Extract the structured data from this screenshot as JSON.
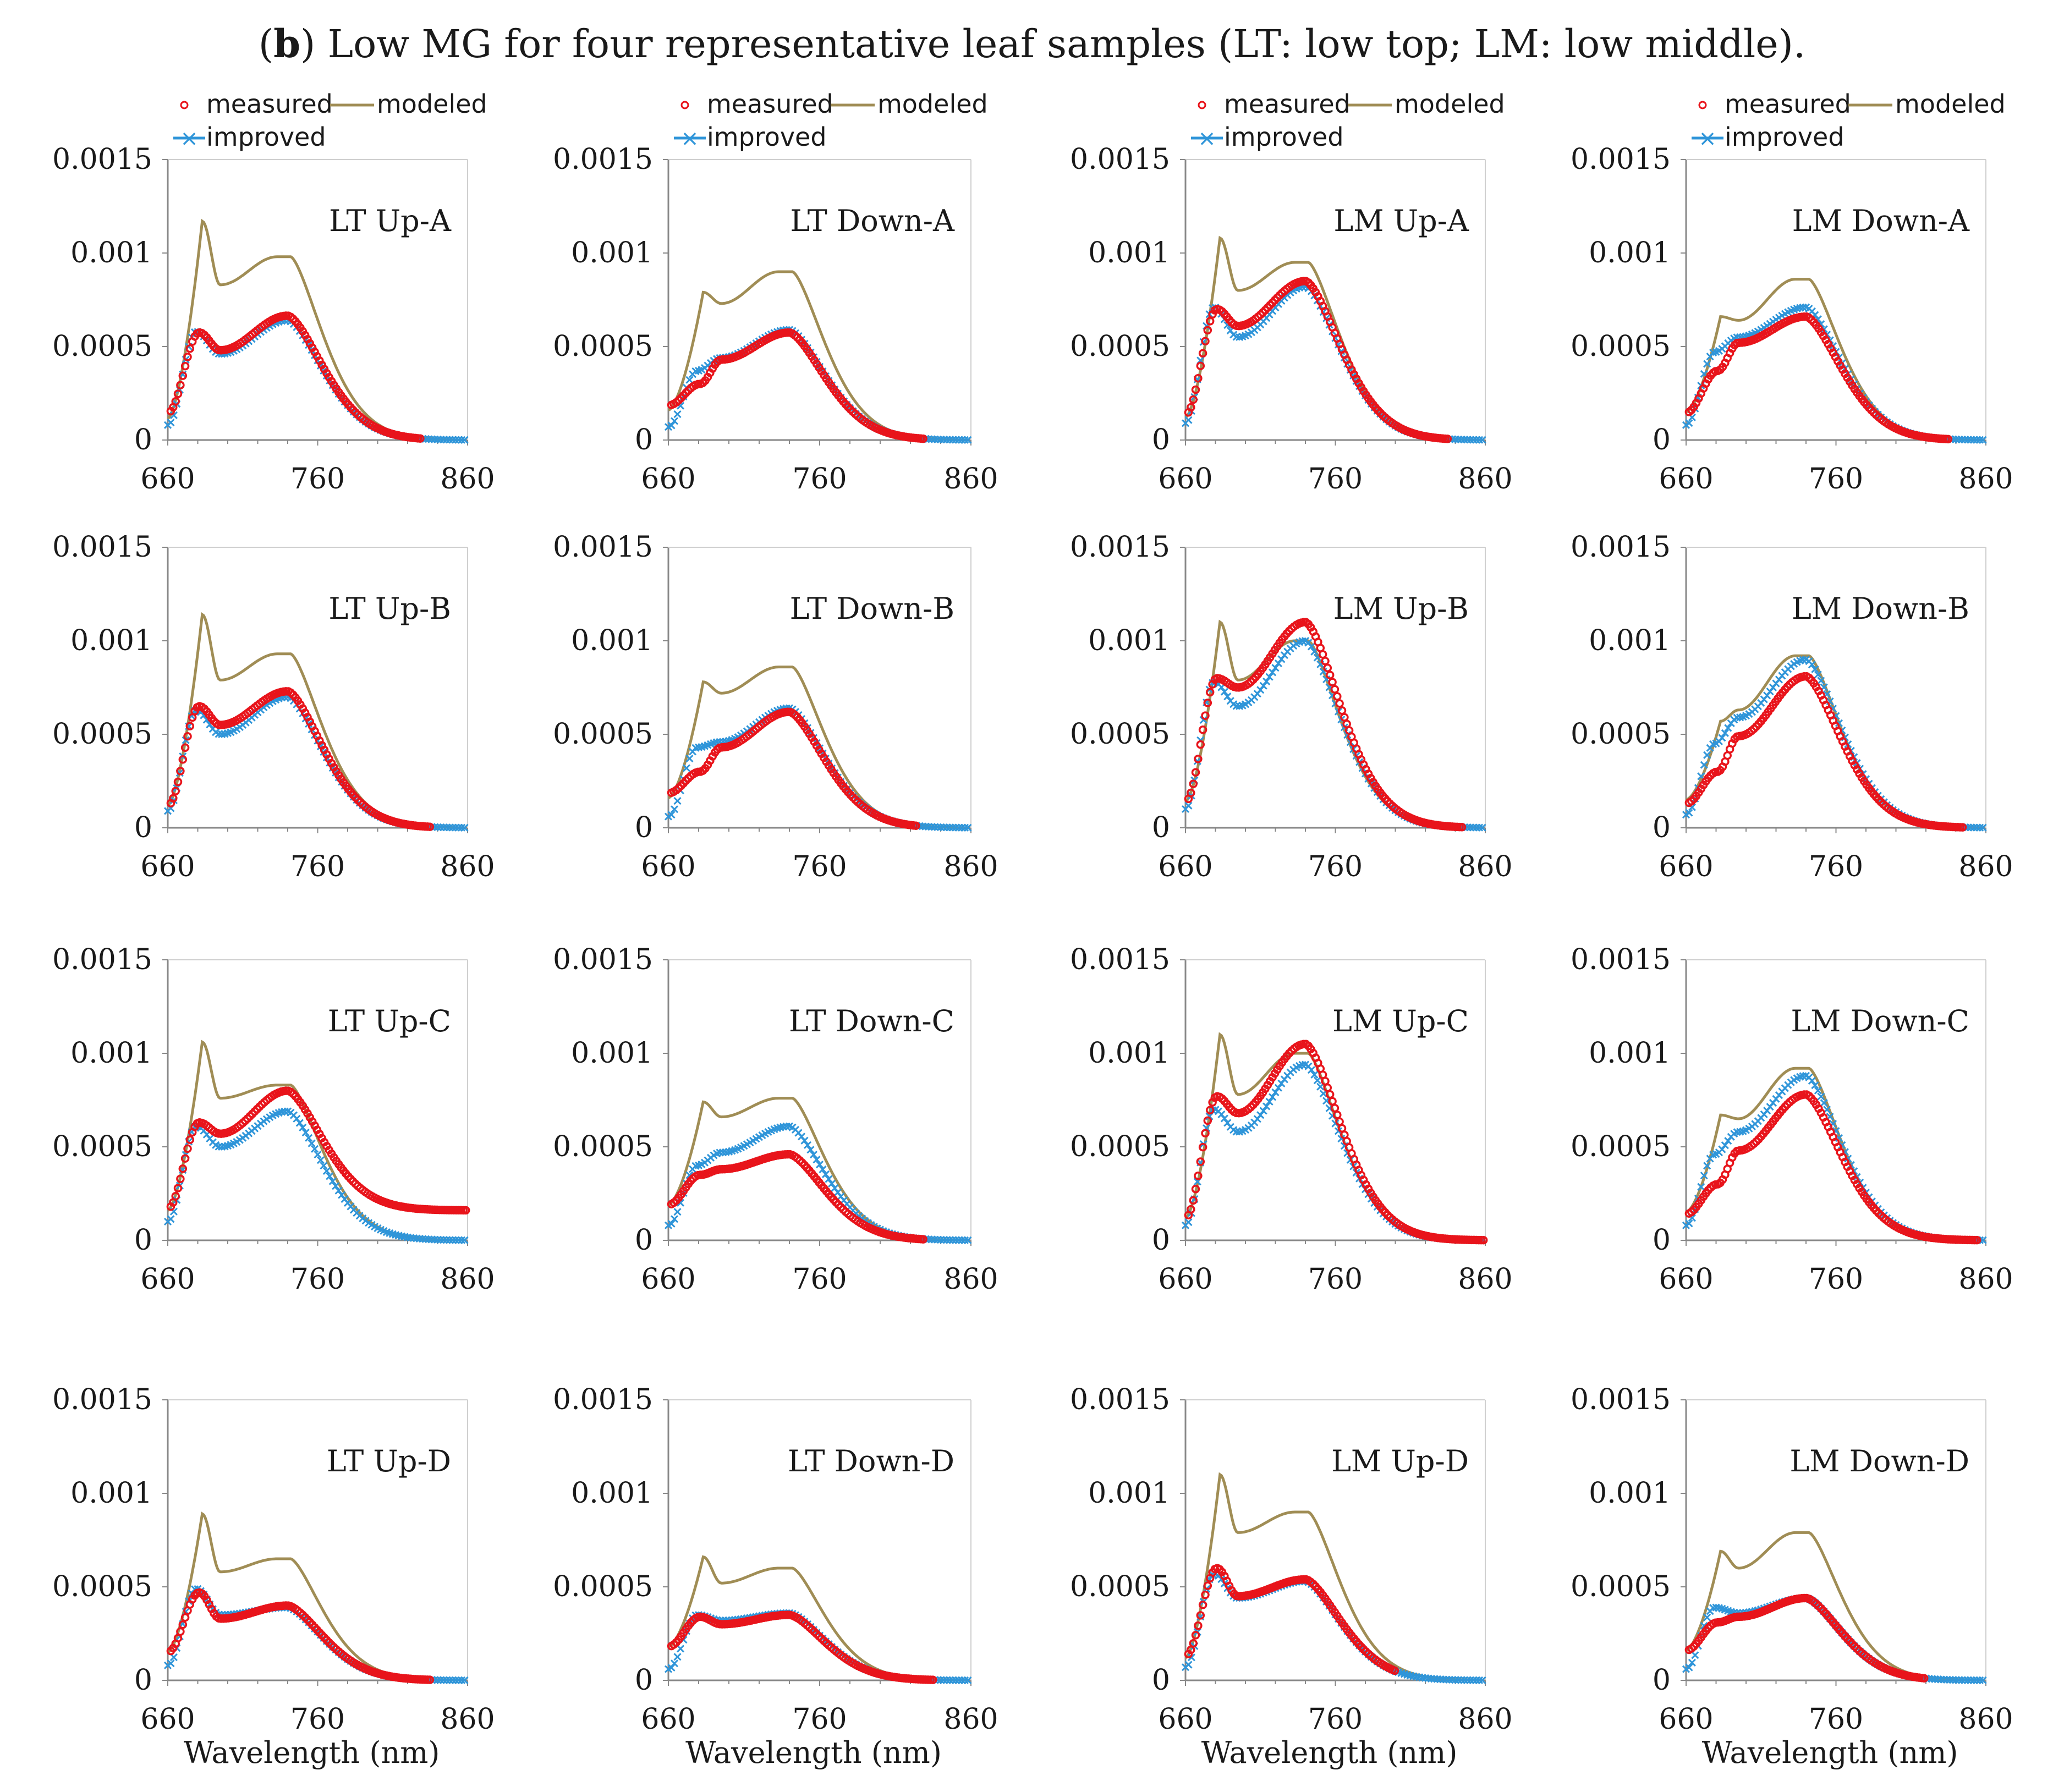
{
  "figure": {
    "prefix": "(",
    "label": "b",
    "title": ") Low MG for four representative leaf samples (LT: low top; LM: low middle)."
  },
  "legend": {
    "measured": "measured",
    "modeled": "modeled",
    "improved": "improved"
  },
  "colors": {
    "measured": "#e8141b",
    "modeled": "#a08d55",
    "improved": "#2f95d9",
    "axis": "#888888",
    "text": "#1a1a1a"
  },
  "chart_data": {
    "type": "line",
    "xlabel": "Wavelength (nm)",
    "xlim": [
      660,
      860
    ],
    "ylim": [
      0,
      0.0015
    ],
    "xticks": [
      "660",
      "760",
      "860"
    ],
    "yticks": [
      "0",
      "0.0005",
      "0.001",
      "0.0015"
    ],
    "panels": [
      {
        "title": "LT Up-A",
        "modeled": [
          0.000115,
          0.00117,
          0.00083,
          0.00098,
          0.00097
        ],
        "measured": [
          0.000145,
          0.000575,
          0.00048,
          0.000665
        ],
        "improved": [
          8e-05,
          0.00058,
          0.00046,
          0.00064
        ],
        "meas_end": 830,
        "tail": 0
      },
      {
        "title": "LT Down-A",
        "modeled": [
          0.00016,
          0.00079,
          0.00073,
          0.0009,
          0.00089
        ],
        "measured": [
          0.000185,
          0.0003,
          0.00043,
          0.000575
        ],
        "improved": [
          7e-05,
          0.00037,
          0.00044,
          0.00059
        ],
        "meas_end": 830,
        "tail": 0
      },
      {
        "title": "LM Up-A",
        "modeled": [
          0.00012,
          0.00108,
          0.0008,
          0.00095,
          0.00095
        ],
        "measured": [
          0.000135,
          0.0007,
          0.00061,
          0.00085
        ],
        "improved": [
          9e-05,
          0.00071,
          0.00055,
          0.00082
        ],
        "meas_end": 835,
        "tail": 0
      },
      {
        "title": "LM Down-A",
        "modeled": [
          0.00015,
          0.00066,
          0.00064,
          0.00086,
          0.00085
        ],
        "measured": [
          0.000145,
          0.00037,
          0.00052,
          0.00066
        ],
        "improved": [
          8e-05,
          0.00047,
          0.00055,
          0.00071
        ],
        "meas_end": 835,
        "tail": 0
      },
      {
        "title": "LT Up-B",
        "modeled": [
          0.00012,
          0.00114,
          0.00079,
          0.00093,
          0.00092
        ],
        "measured": [
          0.00012,
          0.00065,
          0.00055,
          0.00073
        ],
        "improved": [
          9e-05,
          0.00063,
          0.0005,
          0.0007
        ],
        "meas_end": 835,
        "tail": 0
      },
      {
        "title": "LT Down-B",
        "modeled": [
          0.00016,
          0.00078,
          0.00072,
          0.00086,
          0.00085
        ],
        "measured": [
          0.000185,
          0.0003,
          0.00043,
          0.00062
        ],
        "improved": [
          6e-05,
          0.00043,
          0.00046,
          0.00064
        ],
        "meas_end": 825,
        "tail": 0
      },
      {
        "title": "LM Up-B",
        "modeled": [
          0.00014,
          0.0011,
          0.00079,
          0.001,
          0.001
        ],
        "measured": [
          0.00014,
          0.0008,
          0.00075,
          0.0011
        ],
        "improved": [
          0.0001,
          0.00078,
          0.00065,
          0.001
        ],
        "meas_end": 845,
        "tail": 0
      },
      {
        "title": "LM Down-B",
        "modeled": [
          0.00015,
          0.00057,
          0.00063,
          0.00092,
          0.00091
        ],
        "measured": [
          0.00013,
          0.0003,
          0.00049,
          0.00081
        ],
        "improved": [
          7e-05,
          0.00045,
          0.00059,
          0.0009
        ],
        "meas_end": 845,
        "tail": 0
      },
      {
        "title": "LT Up-C",
        "modeled": [
          0.00016,
          0.00106,
          0.00076,
          0.00083,
          0.00082
        ],
        "measured": [
          0.00017,
          0.00063,
          0.00057,
          0.0008
        ],
        "improved": [
          0.0001,
          0.00061,
          0.0005,
          0.00069
        ],
        "meas_end": 860,
        "tail": 0.00016
      },
      {
        "title": "LT Down-C",
        "modeled": [
          0.00019,
          0.00074,
          0.00066,
          0.00076,
          0.00075
        ],
        "measured": [
          0.00019,
          0.00035,
          0.00038,
          0.00046
        ],
        "improved": [
          8e-05,
          0.0004,
          0.00047,
          0.00061
        ],
        "meas_end": 830,
        "tail": 0
      },
      {
        "title": "LM Up-C",
        "modeled": [
          0.00012,
          0.0011,
          0.00078,
          0.001,
          0.00099
        ],
        "measured": [
          0.00012,
          0.00077,
          0.00068,
          0.00105
        ],
        "improved": [
          8e-05,
          0.0007,
          0.00058,
          0.00094
        ],
        "meas_end": 860,
        "tail": 0
      },
      {
        "title": "LM Down-C",
        "modeled": [
          0.00015,
          0.00067,
          0.00065,
          0.00092,
          0.00091
        ],
        "measured": [
          0.00014,
          0.0003,
          0.00048,
          0.00078
        ],
        "improved": [
          8e-05,
          0.00046,
          0.00058,
          0.00088
        ],
        "meas_end": 855,
        "tail": 0
      },
      {
        "title": "LT Up-D",
        "modeled": [
          0.00015,
          0.00089,
          0.00058,
          0.00065,
          0.00064
        ],
        "measured": [
          0.00015,
          0.00047,
          0.00033,
          0.0004
        ],
        "improved": [
          8e-05,
          0.00049,
          0.00035,
          0.00039
        ],
        "meas_end": 835,
        "tail": 0
      },
      {
        "title": "LT Down-D",
        "modeled": [
          0.00018,
          0.00066,
          0.00052,
          0.0006,
          0.00059
        ],
        "measured": [
          0.00018,
          0.00034,
          0.0003,
          0.00035
        ],
        "improved": [
          6e-05,
          0.00035,
          0.00032,
          0.00036
        ],
        "meas_end": 835,
        "tail": 0
      },
      {
        "title": "LM Up-D",
        "modeled": [
          0.00012,
          0.0011,
          0.00079,
          0.0009,
          0.00089
        ],
        "measured": [
          0.00013,
          0.0006,
          0.00045,
          0.00054
        ],
        "improved": [
          7e-05,
          0.00057,
          0.00044,
          0.00053
        ],
        "meas_end": 800,
        "tail": 0
      },
      {
        "title": "LM Down-D",
        "modeled": [
          0.00016,
          0.00069,
          0.0006,
          0.00079,
          0.00078
        ],
        "measured": [
          0.00016,
          0.00031,
          0.00034,
          0.00044
        ],
        "improved": [
          6e-05,
          0.00039,
          0.00036,
          0.00044
        ],
        "meas_end": 820,
        "tail": 0
      }
    ]
  }
}
